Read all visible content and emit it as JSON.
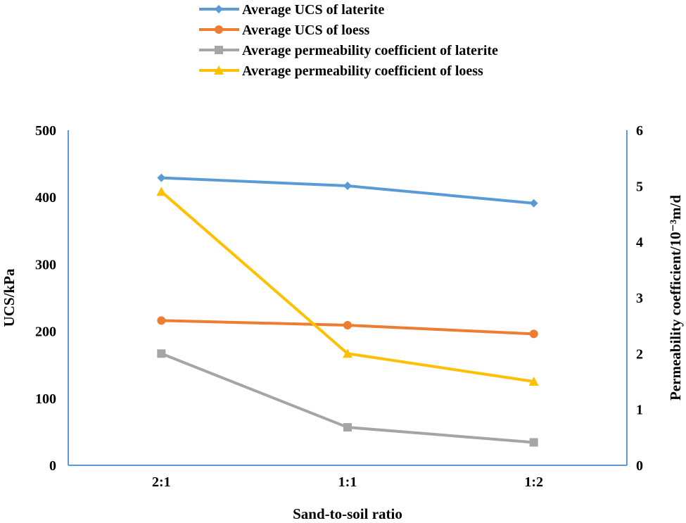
{
  "chart_data": {
    "type": "line",
    "categories": [
      "2:1",
      "1:1",
      "1:2"
    ],
    "xlabel": "Sand-to-soil ratio",
    "ylabel": "UCS/kPa",
    "y2label": "Permeability coefficient/10⁻³m/d",
    "ylim": [
      0,
      500
    ],
    "y2lim": [
      0,
      6
    ],
    "yticks": [
      "0",
      "100",
      "200",
      "300",
      "400",
      "500"
    ],
    "y2ticks": [
      "0",
      "1",
      "2",
      "3",
      "4",
      "5",
      "6"
    ],
    "grid": false,
    "legend_position": "top",
    "series": [
      {
        "name": "Average UCS of laterite",
        "axis": "left",
        "color": "#5B9BD5",
        "marker": "diamond",
        "values": [
          429,
          417,
          391
        ]
      },
      {
        "name": "Average UCS of loess",
        "axis": "left",
        "color": "#ED7D31",
        "marker": "circle",
        "values": [
          216,
          209,
          196
        ]
      },
      {
        "name": "Average permeability coefficient of laterite",
        "axis": "right",
        "color": "#A5A5A5",
        "marker": "square",
        "values": [
          2.0,
          0.68,
          0.41
        ]
      },
      {
        "name": "Average permeability coefficient of loess",
        "axis": "right",
        "color": "#FFC000",
        "marker": "triangle",
        "values": [
          4.9,
          2.0,
          1.5
        ]
      }
    ]
  }
}
